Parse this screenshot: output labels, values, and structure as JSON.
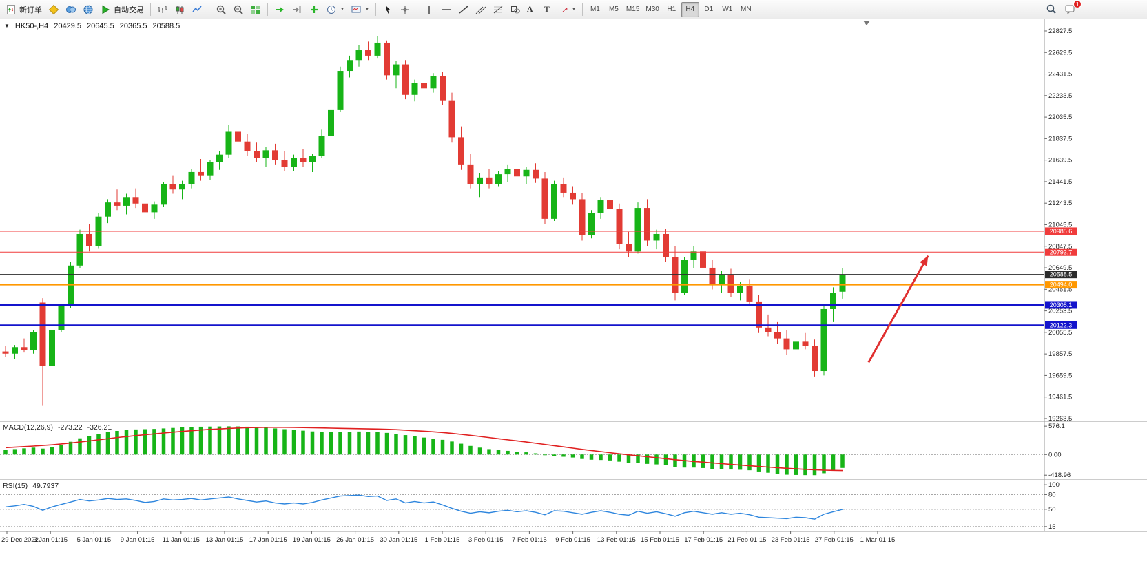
{
  "icons": {
    "collapse": "▼",
    "caret": "▼",
    "text_tool": "A",
    "label_tool": "T",
    "arrow_tool": "↗"
  },
  "toolbar": {
    "new_order": "新订单",
    "auto_trading": "自动交易",
    "timeframes": [
      "M1",
      "M5",
      "M15",
      "M30",
      "H1",
      "H4",
      "D1",
      "W1",
      "MN"
    ],
    "active_timeframe": "H4",
    "badge_count": "1"
  },
  "chart_header": {
    "symbol": "HK50-,H4",
    "open": "20429.5",
    "high": "20645.5",
    "low": "20365.5",
    "close": "20588.5"
  },
  "chart_data": {
    "type": "candlestick",
    "title": "HK50- H4 chart with MACD and RSI",
    "symbol": "HK50-",
    "timeframe": "H4",
    "colors": {
      "up": "#17b417",
      "down": "#e23b34",
      "macd_hist": "#17b417",
      "macd_signal": "#e02020",
      "rsi_line": "#2e86de",
      "axis_text": "#222"
    },
    "price_axis_ticks": [
      22827.5,
      22629.5,
      22431.5,
      22233.5,
      22035.5,
      21837.5,
      21639.5,
      21441.5,
      21243.5,
      21045.5,
      20847.5,
      20649.5,
      20451.5,
      20253.5,
      20055.5,
      19857.5,
      19659.5,
      19461.5,
      19263.5
    ],
    "h_lines": [
      {
        "value": 20985.6,
        "label": "20985.6",
        "color": "#f03c3c",
        "width": 1
      },
      {
        "value": 20793.7,
        "label": "20793.7",
        "color": "#f03c3c",
        "width": 1
      },
      {
        "value": 20588.5,
        "label": "20588.5",
        "color": "#2b2b2b",
        "width": 1
      },
      {
        "value": 20494.0,
        "label": "20494.0",
        "color": "#ff9800",
        "width": 2
      },
      {
        "value": 20308.1,
        "label": "20308.1",
        "color": "#1414cc",
        "width": 2
      },
      {
        "value": 20122.3,
        "label": "20122.3",
        "color": "#1414cc",
        "width": 2
      }
    ],
    "candles": [
      [
        19880,
        19930,
        19830,
        19860
      ],
      [
        19860,
        19940,
        19810,
        19920
      ],
      [
        19920,
        20000,
        19870,
        19890
      ],
      [
        19890,
        20080,
        19860,
        20060
      ],
      [
        20330,
        20370,
        19380,
        19750
      ],
      [
        19750,
        20100,
        19720,
        20080
      ],
      [
        20080,
        20320,
        20060,
        20300
      ],
      [
        20300,
        20700,
        20280,
        20670
      ],
      [
        20670,
        21000,
        20650,
        20960
      ],
      [
        20960,
        21050,
        20800,
        20850
      ],
      [
        20850,
        21150,
        20830,
        21120
      ],
      [
        21120,
        21280,
        21060,
        21250
      ],
      [
        21250,
        21370,
        21180,
        21220
      ],
      [
        21220,
        21330,
        21140,
        21300
      ],
      [
        21300,
        21380,
        21200,
        21240
      ],
      [
        21240,
        21320,
        21120,
        21160
      ],
      [
        21160,
        21260,
        21100,
        21230
      ],
      [
        21230,
        21440,
        21210,
        21420
      ],
      [
        21420,
        21500,
        21330,
        21370
      ],
      [
        21370,
        21450,
        21280,
        21420
      ],
      [
        21420,
        21560,
        21380,
        21530
      ],
      [
        21530,
        21650,
        21450,
        21500
      ],
      [
        21500,
        21640,
        21460,
        21620
      ],
      [
        21620,
        21720,
        21550,
        21690
      ],
      [
        21690,
        21960,
        21660,
        21900
      ],
      [
        21900,
        21970,
        21770,
        21810
      ],
      [
        21810,
        21880,
        21680,
        21720
      ],
      [
        21720,
        21800,
        21620,
        21660
      ],
      [
        21660,
        21760,
        21580,
        21730
      ],
      [
        21730,
        21790,
        21600,
        21640
      ],
      [
        21640,
        21720,
        21540,
        21580
      ],
      [
        21580,
        21690,
        21540,
        21660
      ],
      [
        21660,
        21740,
        21580,
        21620
      ],
      [
        21620,
        21700,
        21530,
        21680
      ],
      [
        21680,
        21920,
        21660,
        21860
      ],
      [
        21860,
        22120,
        21840,
        22100
      ],
      [
        22100,
        22500,
        22080,
        22460
      ],
      [
        22460,
        22600,
        22400,
        22560
      ],
      [
        22560,
        22700,
        22500,
        22650
      ],
      [
        22650,
        22730,
        22560,
        22600
      ],
      [
        22600,
        22780,
        22580,
        22720
      ],
      [
        22720,
        22740,
        22380,
        22420
      ],
      [
        22420,
        22550,
        22300,
        22520
      ],
      [
        22520,
        22560,
        22200,
        22240
      ],
      [
        22240,
        22380,
        22180,
        22350
      ],
      [
        22350,
        22420,
        22250,
        22300
      ],
      [
        22300,
        22440,
        22260,
        22410
      ],
      [
        22410,
        22450,
        22150,
        22190
      ],
      [
        22190,
        22260,
        21800,
        21850
      ],
      [
        21850,
        21950,
        21550,
        21600
      ],
      [
        21600,
        21700,
        21380,
        21420
      ],
      [
        21420,
        21520,
        21300,
        21480
      ],
      [
        21480,
        21560,
        21380,
        21420
      ],
      [
        21420,
        21540,
        21400,
        21510
      ],
      [
        21510,
        21600,
        21440,
        21560
      ],
      [
        21560,
        21620,
        21450,
        21490
      ],
      [
        21490,
        21580,
        21420,
        21550
      ],
      [
        21550,
        21610,
        21430,
        21470
      ],
      [
        21470,
        21530,
        21050,
        21100
      ],
      [
        21100,
        21450,
        21080,
        21420
      ],
      [
        21420,
        21480,
        21300,
        21340
      ],
      [
        21340,
        21400,
        21230,
        21280
      ],
      [
        21280,
        21340,
        20900,
        20950
      ],
      [
        20950,
        21180,
        20920,
        21150
      ],
      [
        21150,
        21300,
        21100,
        21270
      ],
      [
        21270,
        21320,
        21150,
        21190
      ],
      [
        21190,
        21240,
        20820,
        20870
      ],
      [
        20870,
        20980,
        20750,
        20800
      ],
      [
        20800,
        21250,
        20780,
        21200
      ],
      [
        21200,
        21280,
        20850,
        20900
      ],
      [
        20900,
        21000,
        20820,
        20960
      ],
      [
        20960,
        21010,
        20700,
        20750
      ],
      [
        20750,
        20850,
        20350,
        20420
      ],
      [
        20420,
        20750,
        20400,
        20720
      ],
      [
        20720,
        20850,
        20650,
        20800
      ],
      [
        20800,
        20870,
        20600,
        20650
      ],
      [
        20650,
        20720,
        20450,
        20500
      ],
      [
        20500,
        20620,
        20420,
        20580
      ],
      [
        20580,
        20640,
        20380,
        20420
      ],
      [
        20420,
        20520,
        20350,
        20480
      ],
      [
        20480,
        20540,
        20300,
        20340
      ],
      [
        20340,
        20400,
        20050,
        20100
      ],
      [
        20100,
        20220,
        20020,
        20060
      ],
      [
        20060,
        20150,
        19950,
        20000
      ],
      [
        20000,
        20080,
        19850,
        19900
      ],
      [
        19900,
        20000,
        19850,
        19970
      ],
      [
        19970,
        20050,
        19900,
        19930
      ],
      [
        19930,
        19990,
        19650,
        19700
      ],
      [
        19700,
        20300,
        19660,
        20270
      ],
      [
        20270,
        20470,
        20150,
        20420
      ],
      [
        20429.5,
        20645.5,
        20365.5,
        20588.5
      ]
    ],
    "time_labels": [
      "29 Dec 2022",
      "3 Jan 01:15",
      "5 Jan 01:15",
      "9 Jan 01:15",
      "11 Jan 01:15",
      "13 Jan 01:15",
      "17 Jan 01:15",
      "19 Jan 01:15",
      "26 Jan 01:15",
      "30 Jan 01:15",
      "1 Feb 01:15",
      "3 Feb 01:15",
      "7 Feb 01:15",
      "9 Feb 01:15",
      "13 Feb 01:15",
      "15 Feb 01:15",
      "17 Feb 01:15",
      "21 Feb 01:15",
      "23 Feb 01:15",
      "27 Feb 01:15",
      "1 Mar 01:15"
    ],
    "macd": {
      "label": "MACD(12,26,9)",
      "main_value": "-273.22",
      "signal_value": "-326.21",
      "scale_labels": [
        {
          "v": 576.1,
          "t": "576.1"
        },
        {
          "v": 0,
          "t": "0.00"
        },
        {
          "v": -418.96,
          "t": "-418.96"
        }
      ],
      "histogram": [
        90,
        110,
        125,
        140,
        120,
        150,
        200,
        260,
        330,
        380,
        420,
        455,
        480,
        500,
        510,
        515,
        520,
        530,
        540,
        550,
        560,
        565,
        568,
        570,
        572,
        570,
        565,
        555,
        545,
        530,
        515,
        500,
        485,
        470,
        460,
        455,
        460,
        465,
        468,
        465,
        460,
        440,
        420,
        395,
        370,
        345,
        325,
        300,
        265,
        220,
        175,
        140,
        110,
        90,
        75,
        60,
        45,
        25,
        -10,
        -30,
        -45,
        -60,
        -90,
        -105,
        -110,
        -120,
        -145,
        -170,
        -175,
        -190,
        -200,
        -220,
        -255,
        -265,
        -265,
        -275,
        -290,
        -295,
        -305,
        -310,
        -320,
        -345,
        -370,
        -390,
        -410,
        -415,
        -418,
        -419,
        -380,
        -320,
        -273.22
      ],
      "signal": [
        140,
        150,
        160,
        172,
        185,
        198,
        215,
        234,
        255,
        276,
        300,
        322,
        345,
        365,
        385,
        403,
        420,
        438,
        455,
        470,
        485,
        498,
        510,
        520,
        530,
        538,
        545,
        549,
        552,
        553,
        553,
        551,
        548,
        544,
        540,
        536,
        532,
        528,
        525,
        521,
        518,
        512,
        505,
        495,
        485,
        474,
        462,
        447,
        430,
        410,
        390,
        368,
        345,
        322,
        300,
        278,
        255,
        230,
        205,
        180,
        155,
        130,
        105,
        82,
        60,
        37,
        15,
        -5,
        -25,
        -45,
        -65,
        -85,
        -105,
        -123,
        -140,
        -155,
        -170,
        -185,
        -200,
        -214,
        -228,
        -242,
        -255,
        -268,
        -280,
        -291,
        -302,
        -310,
        -318,
        -323,
        -326.21
      ]
    },
    "rsi": {
      "label": "RSI(15)",
      "value": "49.7937",
      "level_labels": [
        {
          "v": 100,
          "t": "100"
        },
        {
          "v": 80,
          "t": "80"
        },
        {
          "v": 50,
          "t": "50"
        },
        {
          "v": 15,
          "t": "15"
        }
      ],
      "dashed_levels": [
        80,
        50,
        15
      ],
      "values": [
        55,
        57,
        60,
        56,
        48,
        55,
        60,
        65,
        70,
        67,
        69,
        72,
        70,
        71,
        68,
        64,
        66,
        71,
        69,
        70,
        72,
        69,
        71,
        73,
        75,
        71,
        68,
        65,
        67,
        63,
        61,
        63,
        61,
        64,
        69,
        73,
        77,
        78,
        79,
        76,
        77,
        68,
        71,
        63,
        66,
        63,
        65,
        59,
        52,
        46,
        42,
        45,
        43,
        46,
        48,
        45,
        47,
        44,
        39,
        47,
        46,
        43,
        40,
        44,
        47,
        44,
        40,
        38,
        46,
        42,
        45,
        41,
        36,
        43,
        46,
        43,
        40,
        43,
        40,
        42,
        39,
        34,
        33,
        32,
        31,
        34,
        33,
        30,
        40,
        45,
        49.79
      ]
    },
    "annotation_arrow": {
      "from": {
        "index": 92.8,
        "price": 19780
      },
      "to": {
        "index": 99.2,
        "price": 20760
      },
      "color": "#e03030"
    }
  }
}
